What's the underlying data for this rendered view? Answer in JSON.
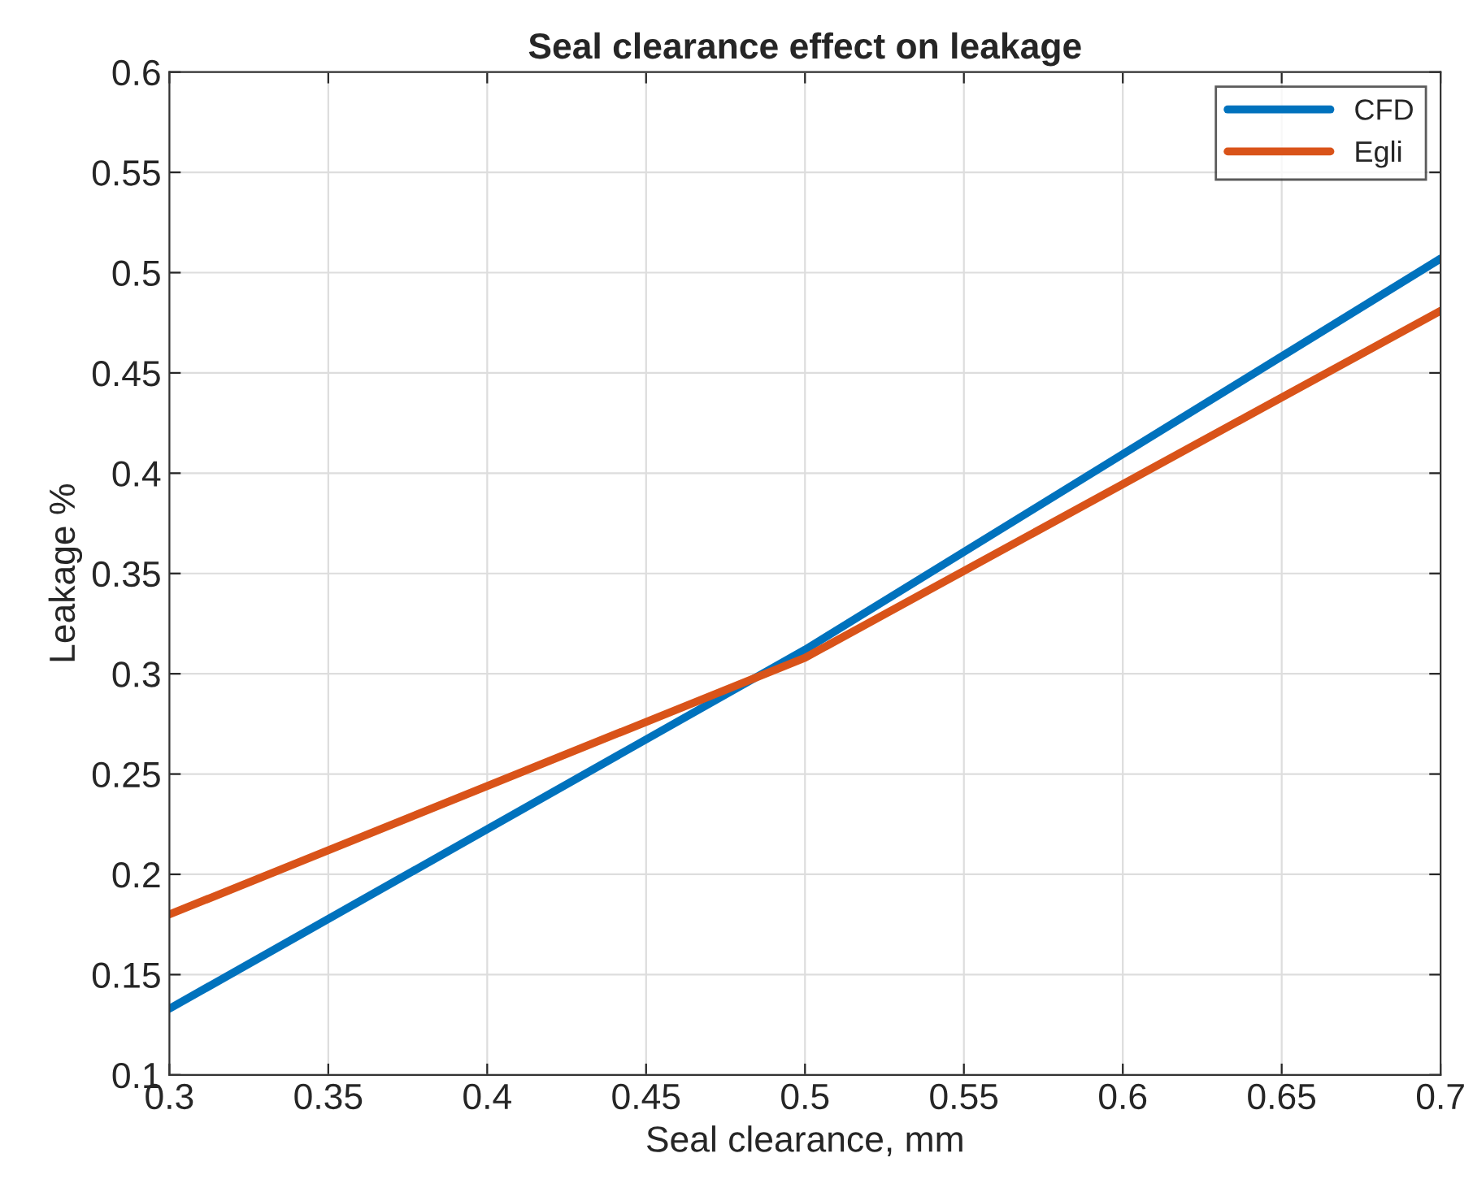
{
  "chart_data": {
    "type": "line",
    "title": "Seal clearance effect on leakage",
    "xlabel": "Seal clearance, mm",
    "ylabel": "Leakage %",
    "x": [
      0.3,
      0.5,
      0.7
    ],
    "series": [
      {
        "name": "CFD",
        "color": "#0072bd",
        "values": [
          0.133,
          0.312,
          0.507
        ]
      },
      {
        "name": "Egli",
        "color": "#d95319",
        "values": [
          0.18,
          0.308,
          0.481
        ]
      }
    ],
    "xlim": [
      0.3,
      0.7
    ],
    "xticks": [
      0.3,
      0.35,
      0.4,
      0.45,
      0.5,
      0.55,
      0.6,
      0.65,
      0.7
    ],
    "ylim": [
      0.1,
      0.6
    ],
    "yticks": [
      0.1,
      0.15,
      0.2,
      0.25,
      0.3,
      0.35,
      0.4,
      0.45,
      0.5,
      0.55,
      0.6
    ],
    "grid": true,
    "legend": "top right",
    "marker": "none",
    "line_style": "solid"
  }
}
